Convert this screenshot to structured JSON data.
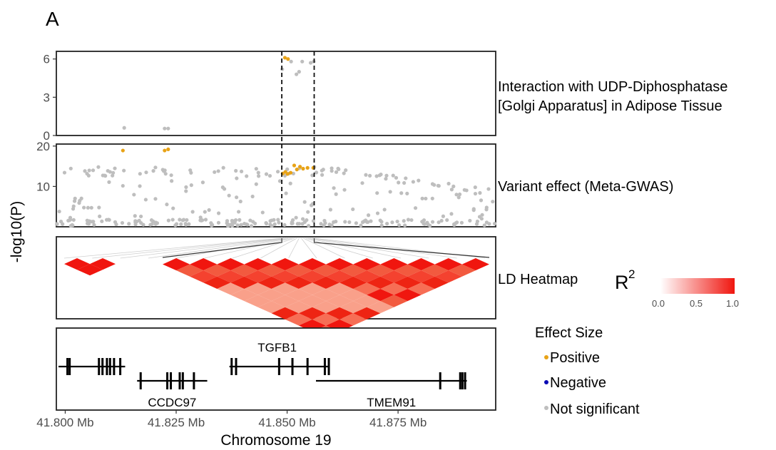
{
  "panel_letter": "A",
  "chart_data": {
    "type": "scatter",
    "y_axis_label": "-log10(P)",
    "x_axis_label": "Chromosome 19",
    "x_ticks": [
      "41.800 Mb",
      "41.825 Mb",
      "41.850 Mb",
      "41.875 Mb"
    ],
    "x_tick_values": [
      41.8,
      41.825,
      41.85,
      41.875
    ],
    "xlim": [
      41.798,
      41.897
    ],
    "highlight_region": [
      41.8488,
      41.8561
    ],
    "colors": {
      "positive": "#e8a317",
      "negative": "#0a0ab4",
      "not_significant": "#bebebe"
    },
    "panels": [
      {
        "label": "Interaction with UDP-Diphosphatase\n[Golgi Apparatus] in Adipose Tissue",
        "label_lines": [
          "Interaction with UDP-Diphosphatase",
          "[Golgi Apparatus] in Adipose Tissue"
        ],
        "y_ticks": [
          "0",
          "3",
          "6"
        ],
        "ylim": [
          0,
          6.6
        ],
        "positive": [
          [
            41.8495,
            6.1
          ],
          [
            41.8502,
            6.0
          ]
        ],
        "not_significant": [
          [
            41.8133,
            0.6
          ],
          [
            41.8224,
            0.55
          ],
          [
            41.8232,
            0.55
          ],
          [
            41.8489,
            5.2
          ],
          [
            41.8509,
            5.8
          ],
          [
            41.8521,
            4.8
          ],
          [
            41.8527,
            5.0
          ],
          [
            41.8534,
            5.8
          ],
          [
            41.8553,
            5.7
          ],
          [
            41.856,
            5.8
          ]
        ]
      },
      {
        "label": "Variant effect (Meta-GWAS)",
        "y_ticks": [
          "10",
          "20"
        ],
        "ylim": [
          0,
          20.5
        ],
        "positive": [
          [
            41.813,
            18.9
          ],
          [
            41.8224,
            18.9
          ],
          [
            41.8232,
            19.2
          ],
          [
            41.849,
            13.2
          ],
          [
            41.8496,
            13.6
          ],
          [
            41.8501,
            13.1
          ],
          [
            41.8508,
            13.4
          ],
          [
            41.8516,
            15.2
          ],
          [
            41.8522,
            14.2
          ],
          [
            41.8529,
            14.9
          ],
          [
            41.8536,
            14.4
          ],
          [
            41.8546,
            14.6
          ],
          [
            41.8559,
            14.6
          ]
        ],
        "not_significant": "many"
      },
      {
        "label": "LD Heatmap",
        "legend_title": "R",
        "legend_title_sup": "2",
        "legend_ticks": [
          "0.0",
          "0.5",
          "1.0"
        ]
      }
    ],
    "genes": [
      {
        "name": "TGFB1",
        "start": 41.837,
        "end": 41.8595,
        "label_pos": "above",
        "exons": [
          41.8375,
          41.8385,
          41.8482,
          41.8512,
          41.8546,
          41.8585,
          41.8594
        ]
      },
      {
        "name": "CCDC97",
        "start": 41.8162,
        "end": 41.832,
        "label_pos": "below",
        "exons": [
          41.817,
          41.823,
          41.8238,
          41.8258,
          41.8265,
          41.829
        ]
      },
      {
        "name": "TMEM91",
        "start": 41.8565,
        "end": 41.8905,
        "label_pos": "below",
        "exons": [
          41.8845,
          41.889,
          41.8895,
          41.8901
        ]
      },
      {
        "name": "",
        "start": 41.7985,
        "end": 41.8135,
        "label_pos": "none",
        "exons": [
          41.8005,
          41.801,
          41.8076,
          41.8084,
          41.8094,
          41.8101,
          41.811,
          41.8124
        ]
      }
    ]
  },
  "legend": {
    "title": "Effect Size",
    "items": [
      {
        "label": "Positive",
        "color": "#e8a317"
      },
      {
        "label": "Negative",
        "color": "#0a0ab4"
      },
      {
        "label": "Not significant",
        "color": "#bebebe"
      }
    ]
  }
}
